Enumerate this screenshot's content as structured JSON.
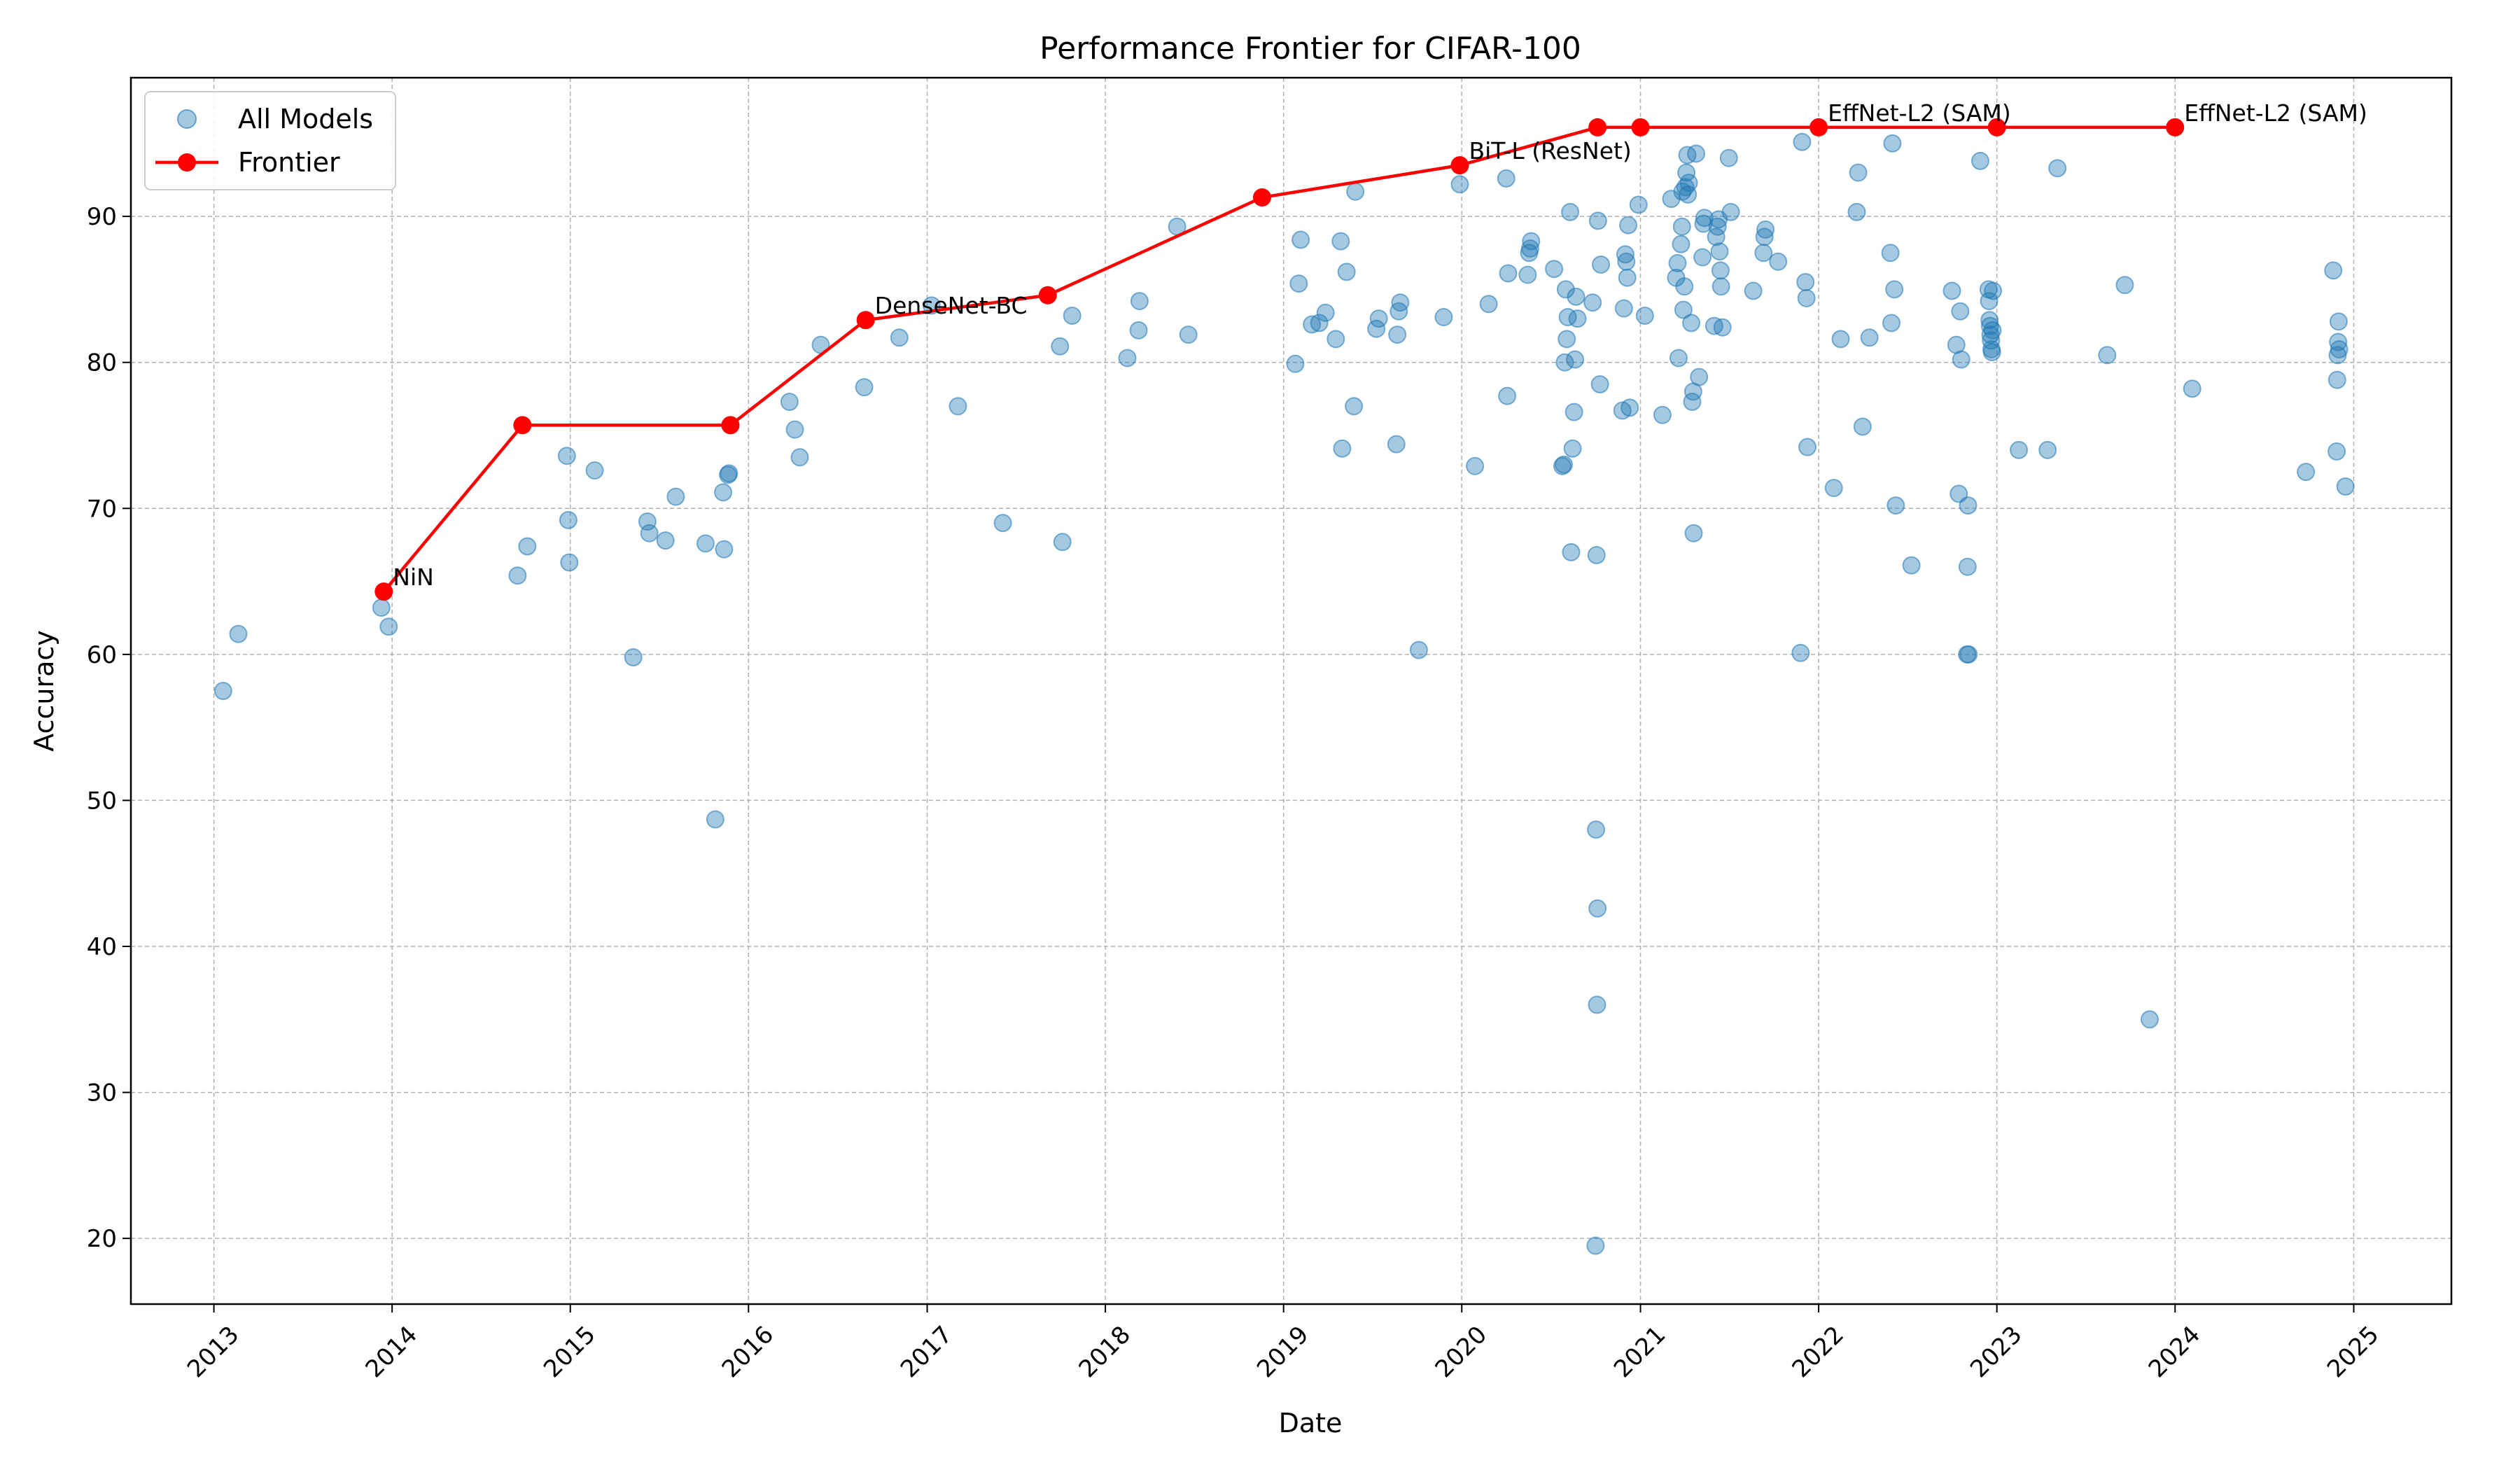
{
  "chart_data": {
    "type": "scatter",
    "title": "Performance Frontier for CIFAR-100",
    "xlabel": "Date",
    "ylabel": "Accuracy",
    "xlim": [
      "2012-07-15",
      "2025-07-20"
    ],
    "ylim": [
      15.5,
      99.5
    ],
    "x_ticks": [
      "2013",
      "2014",
      "2015",
      "2016",
      "2017",
      "2018",
      "2019",
      "2020",
      "2021",
      "2022",
      "2023",
      "2024",
      "2025"
    ],
    "y_ticks": [
      "20",
      "30",
      "40",
      "50",
      "60",
      "70",
      "80",
      "90"
    ],
    "grid": true,
    "legend_position": "top-left",
    "colors": {
      "scatter": "#1f77b4",
      "frontier": "#ff0000"
    },
    "series": [
      {
        "name": "All Models",
        "kind": "scatter",
        "points": [
          [
            "2013-01-20",
            57.5
          ],
          [
            "2013-02-20",
            61.4
          ],
          [
            "2013-12-10",
            63.2
          ],
          [
            "2013-12-25",
            61.9
          ],
          [
            "2014-09-15",
            65.4
          ],
          [
            "2014-10-05",
            67.4
          ],
          [
            "2014-12-25",
            73.6
          ],
          [
            "2014-12-28",
            69.2
          ],
          [
            "2014-12-30",
            66.3
          ],
          [
            "2015-02-20",
            72.6
          ],
          [
            "2015-05-10",
            59.8
          ],
          [
            "2015-06-08",
            69.1
          ],
          [
            "2015-06-12",
            68.3
          ],
          [
            "2015-07-15",
            67.8
          ],
          [
            "2015-08-05",
            70.8
          ],
          [
            "2015-10-05",
            67.6
          ],
          [
            "2015-10-25",
            48.7
          ],
          [
            "2015-11-10",
            71.1
          ],
          [
            "2015-11-12",
            67.2
          ],
          [
            "2015-11-20",
            72.3
          ],
          [
            "2015-11-22",
            72.4
          ],
          [
            "2016-03-25",
            77.3
          ],
          [
            "2016-04-05",
            75.4
          ],
          [
            "2016-04-15",
            73.5
          ],
          [
            "2016-05-28",
            81.2
          ],
          [
            "2016-08-25",
            78.3
          ],
          [
            "2016-11-05",
            81.7
          ],
          [
            "2017-01-10",
            83.9
          ],
          [
            "2017-03-05",
            77.0
          ],
          [
            "2017-06-05",
            69.0
          ],
          [
            "2017-09-30",
            81.1
          ],
          [
            "2017-10-05",
            67.7
          ],
          [
            "2017-10-25",
            83.2
          ],
          [
            "2018-02-15",
            80.3
          ],
          [
            "2018-03-10",
            82.2
          ],
          [
            "2018-03-12",
            84.2
          ],
          [
            "2018-05-28",
            89.3
          ],
          [
            "2018-06-20",
            81.9
          ],
          [
            "2019-01-25",
            79.9
          ],
          [
            "2019-02-01",
            85.4
          ],
          [
            "2019-02-05",
            88.4
          ],
          [
            "2019-02-28",
            82.6
          ],
          [
            "2019-03-15",
            82.7
          ],
          [
            "2019-03-28",
            83.4
          ],
          [
            "2019-04-18",
            81.6
          ],
          [
            "2019-04-28",
            88.3
          ],
          [
            "2019-05-01",
            74.1
          ],
          [
            "2019-05-10",
            86.2
          ],
          [
            "2019-05-25",
            77.0
          ],
          [
            "2019-05-28",
            91.7
          ],
          [
            "2019-07-10",
            82.3
          ],
          [
            "2019-07-15",
            83.0
          ],
          [
            "2019-08-20",
            74.4
          ],
          [
            "2019-08-22",
            81.9
          ],
          [
            "2019-08-25",
            83.5
          ],
          [
            "2019-08-28",
            84.1
          ],
          [
            "2019-10-05",
            60.3
          ],
          [
            "2019-11-25",
            83.1
          ],
          [
            "2019-12-28",
            92.2
          ],
          [
            "2020-01-28",
            72.9
          ],
          [
            "2020-02-25",
            84.0
          ],
          [
            "2020-04-01",
            92.6
          ],
          [
            "2020-04-03",
            77.7
          ],
          [
            "2020-04-05",
            86.1
          ],
          [
            "2020-05-15",
            86.0
          ],
          [
            "2020-05-18",
            87.5
          ],
          [
            "2020-05-20",
            87.8
          ],
          [
            "2020-05-22",
            88.3
          ],
          [
            "2020-07-08",
            86.4
          ],
          [
            "2020-07-25",
            72.9
          ],
          [
            "2020-07-28",
            73.0
          ],
          [
            "2020-07-30",
            80.0
          ],
          [
            "2020-08-01",
            85.0
          ],
          [
            "2020-08-03",
            81.6
          ],
          [
            "2020-08-05",
            83.1
          ],
          [
            "2020-08-10",
            90.3
          ],
          [
            "2020-08-12",
            67.0
          ],
          [
            "2020-08-15",
            74.1
          ],
          [
            "2020-08-18",
            76.6
          ],
          [
            "2020-08-20",
            80.2
          ],
          [
            "2020-08-22",
            84.5
          ],
          [
            "2020-08-25",
            83.0
          ],
          [
            "2020-09-25",
            84.1
          ],
          [
            "2020-10-01",
            19.5
          ],
          [
            "2020-10-02",
            48.0
          ],
          [
            "2020-10-03",
            66.8
          ],
          [
            "2020-10-04",
            36.0
          ],
          [
            "2020-10-05",
            42.6
          ],
          [
            "2020-10-06",
            89.7
          ],
          [
            "2020-10-10",
            78.5
          ],
          [
            "2020-10-12",
            86.7
          ],
          [
            "2020-11-25",
            76.7
          ],
          [
            "2020-11-28",
            83.7
          ],
          [
            "2020-12-01",
            87.4
          ],
          [
            "2020-12-03",
            86.9
          ],
          [
            "2020-12-05",
            85.8
          ],
          [
            "2020-12-07",
            89.4
          ],
          [
            "2020-12-10",
            76.9
          ],
          [
            "2020-12-28",
            90.8
          ],
          [
            "2021-01-10",
            83.2
          ],
          [
            "2021-02-15",
            76.4
          ],
          [
            "2021-03-05",
            91.2
          ],
          [
            "2021-03-15",
            85.8
          ],
          [
            "2021-03-18",
            86.8
          ],
          [
            "2021-03-20",
            80.3
          ],
          [
            "2021-03-25",
            88.1
          ],
          [
            "2021-03-27",
            89.3
          ],
          [
            "2021-03-28",
            91.7
          ],
          [
            "2021-03-30",
            83.6
          ],
          [
            "2021-04-01",
            85.2
          ],
          [
            "2021-04-03",
            92.0
          ],
          [
            "2021-04-05",
            93.0
          ],
          [
            "2021-04-07",
            94.2
          ],
          [
            "2021-04-08",
            91.5
          ],
          [
            "2021-04-10",
            92.3
          ],
          [
            "2021-04-15",
            82.7
          ],
          [
            "2021-04-17",
            77.3
          ],
          [
            "2021-04-19",
            78.0
          ],
          [
            "2021-04-20",
            68.3
          ],
          [
            "2021-04-25",
            94.3
          ],
          [
            "2021-05-01",
            79.0
          ],
          [
            "2021-05-08",
            87.2
          ],
          [
            "2021-05-10",
            89.5
          ],
          [
            "2021-05-12",
            89.9
          ],
          [
            "2021-06-01",
            82.5
          ],
          [
            "2021-06-05",
            88.6
          ],
          [
            "2021-06-08",
            89.3
          ],
          [
            "2021-06-10",
            89.8
          ],
          [
            "2021-06-12",
            87.6
          ],
          [
            "2021-06-14",
            86.3
          ],
          [
            "2021-06-15",
            85.2
          ],
          [
            "2021-06-18",
            82.4
          ],
          [
            "2021-07-01",
            94.0
          ],
          [
            "2021-07-05",
            90.3
          ],
          [
            "2021-08-20",
            84.9
          ],
          [
            "2021-09-10",
            87.5
          ],
          [
            "2021-09-12",
            88.6
          ],
          [
            "2021-09-14",
            89.1
          ],
          [
            "2021-10-10",
            86.9
          ],
          [
            "2021-11-25",
            60.1
          ],
          [
            "2021-11-28",
            95.1
          ],
          [
            "2021-12-05",
            85.5
          ],
          [
            "2021-12-07",
            84.4
          ],
          [
            "2021-12-09",
            74.2
          ],
          [
            "2022-02-01",
            71.4
          ],
          [
            "2022-02-15",
            81.6
          ],
          [
            "2022-03-20",
            90.3
          ],
          [
            "2022-03-23",
            93.0
          ],
          [
            "2022-04-01",
            75.6
          ],
          [
            "2022-04-15",
            81.7
          ],
          [
            "2022-05-28",
            87.5
          ],
          [
            "2022-05-30",
            82.7
          ],
          [
            "2022-06-01",
            95.0
          ],
          [
            "2022-06-05",
            85.0
          ],
          [
            "2022-06-08",
            70.2
          ],
          [
            "2022-07-10",
            66.1
          ],
          [
            "2022-10-01",
            84.9
          ],
          [
            "2022-10-10",
            81.2
          ],
          [
            "2022-10-15",
            71.0
          ],
          [
            "2022-10-18",
            83.5
          ],
          [
            "2022-10-20",
            80.2
          ],
          [
            "2022-11-01",
            60.0
          ],
          [
            "2022-11-02",
            66.0
          ],
          [
            "2022-11-03",
            70.2
          ],
          [
            "2022-11-04",
            60.0
          ],
          [
            "2022-11-28",
            93.8
          ],
          [
            "2022-12-15",
            85.0
          ],
          [
            "2022-12-16",
            84.2
          ],
          [
            "2022-12-17",
            82.9
          ],
          [
            "2022-12-18",
            82.5
          ],
          [
            "2022-12-19",
            81.9
          ],
          [
            "2022-12-20",
            81.5
          ],
          [
            "2022-12-21",
            80.9
          ],
          [
            "2022-12-22",
            80.7
          ],
          [
            "2022-12-23",
            82.2
          ],
          [
            "2022-12-24",
            84.9
          ],
          [
            "2023-02-15",
            74.0
          ],
          [
            "2023-04-15",
            74.0
          ],
          [
            "2023-05-05",
            93.3
          ],
          [
            "2023-08-15",
            80.5
          ],
          [
            "2023-09-20",
            85.3
          ],
          [
            "2023-11-10",
            35.0
          ],
          [
            "2024-02-05",
            78.2
          ],
          [
            "2024-09-25",
            72.5
          ],
          [
            "2024-11-20",
            86.3
          ],
          [
            "2024-11-27",
            73.9
          ],
          [
            "2024-11-28",
            78.8
          ],
          [
            "2024-11-29",
            80.5
          ],
          [
            "2024-11-30",
            81.4
          ],
          [
            "2024-12-01",
            82.8
          ],
          [
            "2024-12-02",
            80.9
          ],
          [
            "2024-12-15",
            71.5
          ]
        ]
      },
      {
        "name": "Frontier",
        "kind": "line",
        "points": [
          [
            "2013-12-15",
            64.3
          ],
          [
            "2014-09-25",
            75.7
          ],
          [
            "2015-11-25",
            75.7
          ],
          [
            "2016-08-28",
            82.9
          ],
          [
            "2017-09-05",
            84.6
          ],
          [
            "2018-11-18",
            91.3
          ],
          [
            "2019-12-28",
            93.5
          ],
          [
            "2020-10-05",
            96.1
          ],
          [
            "2021-01-01",
            96.1
          ],
          [
            "2022-01-01",
            96.1
          ],
          [
            "2023-01-01",
            96.1
          ],
          [
            "2024-01-01",
            96.1
          ]
        ]
      }
    ],
    "annotations": [
      {
        "text": "NiN",
        "x": "2013-12-15",
        "y": 64.3
      },
      {
        "text": "DenseNet-BC",
        "x": "2016-08-28",
        "y": 82.9
      },
      {
        "text": "BiT-L (ResNet)",
        "x": "2019-12-28",
        "y": 93.5
      },
      {
        "text": "EffNet-L2 (SAM)",
        "x": "2022-01-01",
        "y": 96.1
      },
      {
        "text": "EffNet-L2 (SAM)",
        "x": "2024-01-01",
        "y": 96.1
      }
    ]
  }
}
